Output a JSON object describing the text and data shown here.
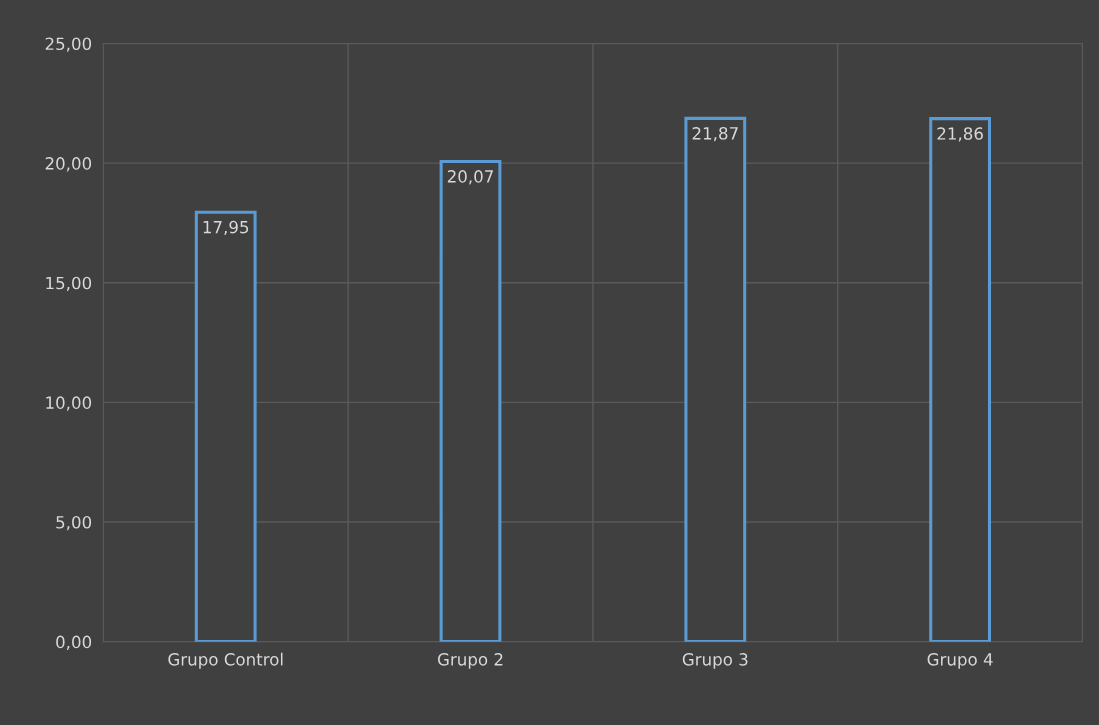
{
  "chart_data": {
    "type": "bar",
    "categories": [
      "Grupo Control",
      "Grupo 2",
      "Grupo 3",
      "Grupo 4"
    ],
    "values": [
      17.95,
      20.07,
      21.87,
      21.86
    ],
    "value_labels": [
      "17,95",
      "20,07",
      "21,87",
      "21,86"
    ],
    "color": "#5b9bd5",
    "ylim": [
      0,
      25
    ],
    "yticks": [
      {
        "value": 0,
        "label": "0,00"
      },
      {
        "value": 5,
        "label": "5,00"
      },
      {
        "value": 10,
        "label": "10,00"
      },
      {
        "value": 15,
        "label": "15,00"
      },
      {
        "value": 20,
        "label": "20,00"
      },
      {
        "value": 25,
        "label": "25,00"
      }
    ],
    "grid": true,
    "legend": false
  }
}
